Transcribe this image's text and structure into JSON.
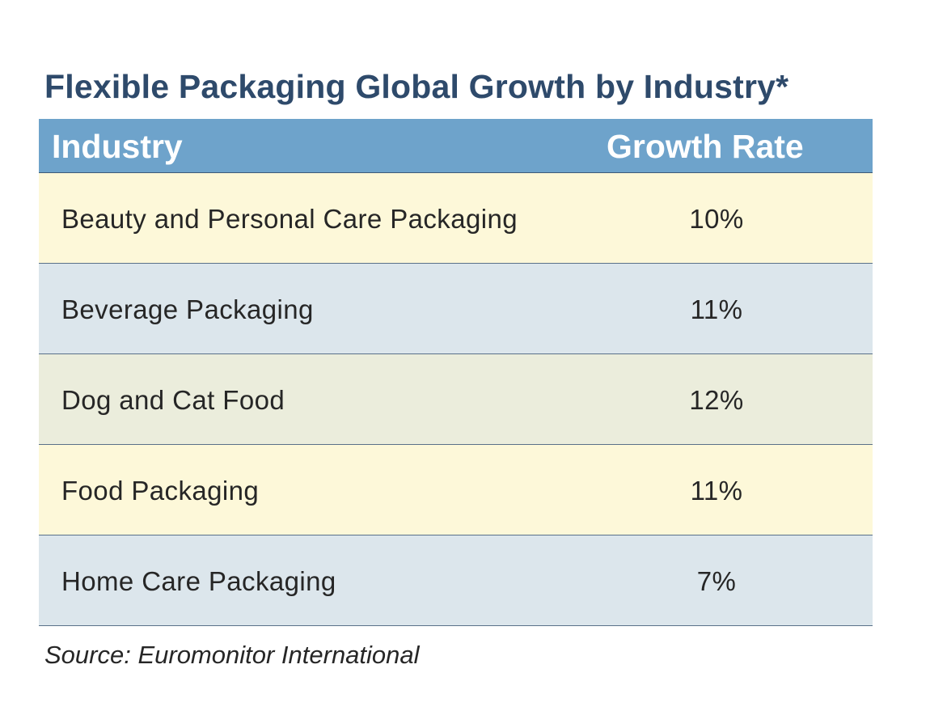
{
  "chart_data": {
    "type": "table",
    "title": "Flexible Packaging Global Growth by Industry*",
    "columns": [
      "Industry",
      "Growth Rate"
    ],
    "rows": [
      {
        "industry": "Beauty and Personal Care Packaging",
        "growth_rate": "10%",
        "value": 10,
        "color": "#fdf8d9"
      },
      {
        "industry": "Beverage Packaging",
        "growth_rate": "11%",
        "value": 11,
        "color": "#dce6ec"
      },
      {
        "industry": "Dog and Cat Food",
        "growth_rate": "12%",
        "value": 12,
        "color": "#ebeddc"
      },
      {
        "industry": "Food Packaging",
        "growth_rate": "11%",
        "value": 11,
        "color": "#fdf8d9"
      },
      {
        "industry": "Home Care Packaging",
        "growth_rate": "7%",
        "value": 7,
        "color": "#dce6ec"
      }
    ],
    "source": "Source: Euromonitor International"
  },
  "colors": {
    "title": "#2e4a6b",
    "header_background": "#6ea3cb",
    "header_text": "#ffffff"
  }
}
